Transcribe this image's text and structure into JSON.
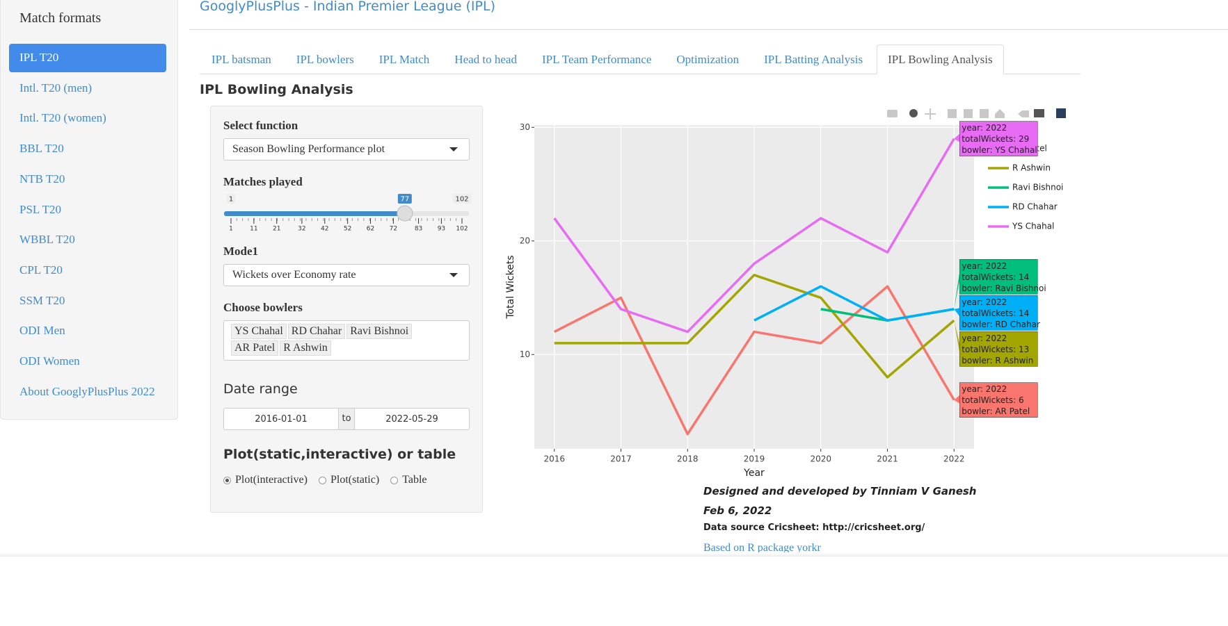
{
  "sidebar": {
    "title": "Match formats",
    "items": [
      "IPL T20",
      "Intl. T20 (men)",
      "Intl. T20 (women)",
      "BBL T20",
      "NTB T20",
      "PSL T20",
      "WBBL T20",
      "CPL T20",
      "SSM T20",
      "ODI Men",
      "ODI Women",
      "About GooglyPlusPlus 2022"
    ],
    "active": 0
  },
  "header": {
    "title": "GooglyPlusPlus - Indian Premier League (IPL)"
  },
  "tabs": {
    "items": [
      "IPL batsman",
      "IPL bowlers",
      "IPL Match",
      "Head to head",
      "IPL Team Performance",
      "Optimization",
      "IPL Batting Analysis",
      "IPL Bowling Analysis"
    ],
    "active": 7
  },
  "panel": {
    "title": "IPL Bowling Analysis",
    "select_function": {
      "label": "Select function",
      "value": "Season Bowling Performance plot"
    },
    "matches_played": {
      "label": "Matches played",
      "min": 1,
      "max": 102,
      "value": 77,
      "ticks": [
        1,
        11,
        21,
        32,
        42,
        52,
        62,
        72,
        83,
        93,
        102
      ]
    },
    "mode": {
      "label": "Mode1",
      "value": "Wickets over Economy rate"
    },
    "bowlers": {
      "label": "Choose bowlers",
      "selected": [
        "YS Chahal",
        "RD Chahar",
        "Ravi Bishnoi",
        "AR Patel",
        "R Ashwin"
      ]
    },
    "date_range": {
      "label": "Date range",
      "start": "2016-01-01",
      "separator": "to",
      "end": "2022-05-29"
    },
    "output": {
      "label": "Plot(static,interactive) or table",
      "options": [
        "Plot(interactive)",
        "Plot(static)",
        "Table"
      ],
      "selected": 0
    }
  },
  "chart_data": {
    "type": "line",
    "x_label": "Year",
    "y_label": "Total Wickets",
    "x": [
      2016,
      2017,
      2018,
      2019,
      2020,
      2021,
      2022
    ],
    "xlim": [
      2015.7,
      2022.3
    ],
    "xticks": [
      2016,
      2017,
      2018,
      2019,
      2020,
      2021,
      2022
    ],
    "ylim": [
      1.7,
      30.2
    ],
    "yticks": [
      10,
      20,
      30
    ],
    "grid": true,
    "series": [
      {
        "name": "AR Patel",
        "color": "#f8766d",
        "values": [
          12,
          15,
          3,
          12,
          11,
          16,
          6
        ],
        "tooltip": [
          "year: 2022",
          "totalWickets:  6",
          "bowler: AR Patel"
        ]
      },
      {
        "name": "R Ashwin",
        "color": "#a3a500",
        "values": [
          11,
          11,
          11,
          17,
          15,
          8,
          13
        ],
        "tooltip": [
          "year: 2022",
          "totalWickets: 13",
          "bowler: R Ashwin"
        ]
      },
      {
        "name": "Ravi Bishnoi",
        "color": "#00bf7d",
        "values": [
          null,
          null,
          null,
          null,
          14,
          13,
          14
        ],
        "tooltip": [
          "year: 2022",
          "totalWickets: 14",
          "bowler: Ravi Bishnoi"
        ]
      },
      {
        "name": "RD Chahar",
        "color": "#00b0f6",
        "values": [
          null,
          null,
          null,
          13,
          16,
          13,
          14
        ],
        "tooltip": [
          "year: 2022",
          "totalWickets: 14",
          "bowler: RD Chahar"
        ]
      },
      {
        "name": "YS Chahal",
        "color": "#e76bf3",
        "values": [
          22,
          14,
          12,
          18,
          22,
          19,
          29
        ],
        "tooltip": [
          "year: 2022",
          "totalWickets: 29",
          "bowler: YS Chahal"
        ]
      }
    ]
  },
  "footer": {
    "credit": "Designed and developed by Tinniam V Ganesh",
    "date": "Feb 6, 2022",
    "source": "Data source Cricsheet: http://cricsheet.org/",
    "package": "Based on R package yorkr"
  }
}
